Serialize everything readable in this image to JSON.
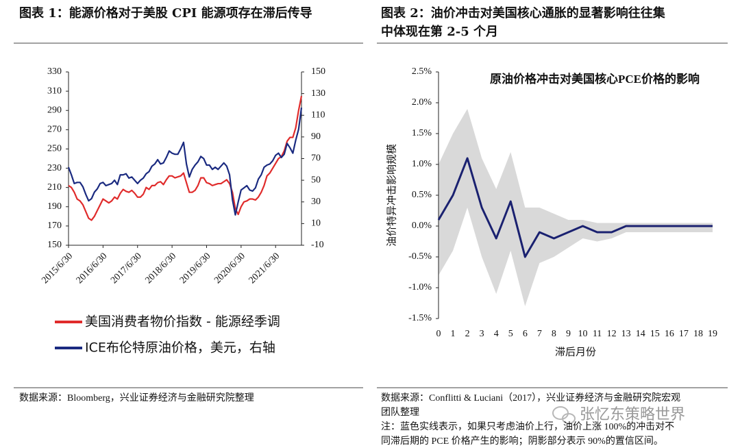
{
  "chart_data": [
    {
      "type": "line",
      "figure_title": [
        "图表 1：能源价格对于美股 CPI 能源项存在滞后传导"
      ],
      "source_lines": [
        "数据来源：Bloomberg，兴业证券经济与金融研究院整理"
      ],
      "x": [
        "2015/6/30",
        "2015/7/31",
        "2015/8/31",
        "2015/9/30",
        "2015/10/31",
        "2015/11/30",
        "2015/12/31",
        "2016/1/31",
        "2016/2/29",
        "2016/3/31",
        "2016/4/30",
        "2016/5/31",
        "2016/6/30",
        "2016/7/31",
        "2016/8/31",
        "2016/9/30",
        "2016/10/31",
        "2016/11/30",
        "2016/12/31",
        "2017/1/31",
        "2017/2/28",
        "2017/3/31",
        "2017/4/30",
        "2017/5/31",
        "2017/6/30",
        "2017/7/31",
        "2017/8/31",
        "2017/9/30",
        "2017/10/31",
        "2017/11/30",
        "2017/12/31",
        "2018/1/31",
        "2018/2/28",
        "2018/3/31",
        "2018/4/30",
        "2018/5/31",
        "2018/6/30",
        "2018/7/31",
        "2018/8/31",
        "2018/9/30",
        "2018/10/31",
        "2018/11/30",
        "2018/12/31",
        "2019/1/31",
        "2019/2/28",
        "2019/3/31",
        "2019/4/30",
        "2019/5/31",
        "2019/6/30",
        "2019/7/31",
        "2019/8/31",
        "2019/9/30",
        "2019/10/31",
        "2019/11/30",
        "2019/12/31",
        "2020/1/31",
        "2020/2/29",
        "2020/3/31",
        "2020/4/30",
        "2020/5/31",
        "2020/6/30",
        "2020/7/31",
        "2020/8/31",
        "2020/9/30",
        "2020/10/31",
        "2020/11/30",
        "2020/12/31",
        "2021/1/31",
        "2021/2/28",
        "2021/3/31",
        "2021/4/30",
        "2021/5/31",
        "2021/6/30",
        "2021/7/31",
        "2021/8/31",
        "2021/9/30",
        "2021/10/31",
        "2021/11/30",
        "2021/12/31",
        "2022/1/31",
        "2022/2/28",
        "2022/3/31"
      ],
      "xticks": [
        "2015/6/30",
        "2016/6/30",
        "2017/6/30",
        "2018/6/30",
        "2019/6/30",
        "2020/6/30",
        "2021/6/30"
      ],
      "ylim": [
        150,
        330
      ],
      "yticks": [
        150,
        170,
        190,
        210,
        230,
        250,
        270,
        290,
        310,
        330
      ],
      "y2lim": [
        -10,
        150
      ],
      "y2ticks": [
        -10,
        10,
        30,
        50,
        70,
        90,
        110,
        130,
        150
      ],
      "series": [
        {
          "name": "美国消费者物价指数 - 能源经季调",
          "color": "#e02b2b",
          "values": [
            212,
            210,
            205,
            198,
            196,
            192,
            185,
            178,
            176,
            180,
            186,
            192,
            198,
            196,
            194,
            196,
            200,
            198,
            204,
            208,
            206,
            205,
            207,
            204,
            200,
            200,
            203,
            210,
            208,
            212,
            212,
            215,
            216,
            213,
            218,
            222,
            222,
            220,
            221,
            222,
            225,
            215,
            205,
            205,
            207,
            212,
            220,
            220,
            215,
            214,
            212,
            213,
            214,
            214,
            216,
            218,
            214,
            205,
            188,
            182,
            190,
            195,
            196,
            198,
            198,
            197,
            200,
            205,
            212,
            222,
            225,
            230,
            235,
            240,
            242,
            248,
            258,
            262,
            262,
            272,
            290,
            305
          ]
        },
        {
          "name": "ICE布伦特原油价格，美元，右轴",
          "color": "#1a2a80",
          "axis": "y2",
          "values": [
            62,
            55,
            47,
            48,
            48,
            44,
            37,
            31,
            33,
            39,
            42,
            47,
            48,
            45,
            46,
            47,
            50,
            46,
            55,
            55,
            56,
            52,
            53,
            50,
            47,
            50,
            52,
            56,
            58,
            63,
            65,
            69,
            65,
            66,
            71,
            77,
            75,
            74,
            74,
            79,
            85,
            65,
            53,
            60,
            64,
            67,
            72,
            70,
            64,
            64,
            60,
            62,
            60,
            63,
            66,
            63,
            55,
            32,
            18,
            30,
            41,
            43,
            45,
            41,
            40,
            43,
            51,
            55,
            62,
            64,
            65,
            68,
            73,
            75,
            71,
            74,
            84,
            80,
            75,
            87,
            97,
            117
          ]
        }
      ]
    },
    {
      "type": "line",
      "figure_title": [
        "图表 2：油价冲击对美国核心通胀的显著影响往往集",
        "中体现在第 2-5 个月"
      ],
      "source_lines": [
        "数据来源：Conflitti & Luciani（2017），兴业证券经济与金融研究院宏观",
        "团队整理",
        "注：蓝色实线表示，如果只考虑油价上行，油价上涨 100%的冲击对不",
        "同滞后期的 PCE 价格产生的影响；阴影部分表示 90%的置信区间。"
      ],
      "title": "原油价格冲击对美国核心PCE价格的影响",
      "x_label": "滞后月份",
      "y_label": "油价特异冲击影响规模",
      "x": [
        0,
        1,
        2,
        3,
        4,
        5,
        6,
        7,
        8,
        9,
        10,
        11,
        12,
        13,
        14,
        15,
        16,
        17,
        18,
        19
      ],
      "xlim": [
        0,
        19
      ],
      "xticks": [
        0,
        1,
        2,
        3,
        4,
        5,
        6,
        7,
        8,
        9,
        10,
        11,
        12,
        13,
        14,
        15,
        16,
        17,
        18,
        19
      ],
      "ylim": [
        -1.5,
        2.5
      ],
      "yticks": [
        {
          "value": -1.5,
          "label": "-1.5%"
        },
        {
          "value": -1,
          "label": "-1.0%"
        },
        {
          "value": -0.5,
          "label": "-0.5%"
        },
        {
          "value": 0,
          "label": "0.0%"
        },
        {
          "value": 0.5,
          "label": "0.5%"
        },
        {
          "value": 1,
          "label": "1.0%"
        },
        {
          "value": 1.5,
          "label": "1.5%"
        },
        {
          "value": 2,
          "label": "2.0%"
        },
        {
          "value": 2.5,
          "label": "2.5%"
        }
      ],
      "band": {
        "color": "#d9d9d9",
        "upper": [
          1.0,
          1.5,
          1.9,
          1.1,
          0.6,
          1.2,
          0.3,
          0.3,
          0.2,
          0.1,
          0.1,
          0.05,
          0.05,
          0.05,
          0.05,
          0.05,
          0.05,
          0.05,
          0.05,
          0.05
        ],
        "lower": [
          -0.8,
          -0.4,
          0.3,
          -0.5,
          -1.1,
          -0.4,
          -1.3,
          -0.6,
          -0.5,
          -0.35,
          -0.2,
          -0.25,
          -0.2,
          -0.1,
          -0.1,
          -0.1,
          -0.1,
          -0.1,
          -0.1,
          -0.1
        ]
      },
      "series": [
        {
          "color": "#1a2170",
          "values": [
            0.1,
            0.5,
            1.1,
            0.3,
            -0.2,
            0.4,
            -0.5,
            -0.1,
            -0.2,
            -0.1,
            0,
            -0.1,
            -0.1,
            0,
            0,
            0,
            0,
            0,
            0,
            0
          ]
        }
      ]
    }
  ],
  "watermark": "张忆东策略世界"
}
